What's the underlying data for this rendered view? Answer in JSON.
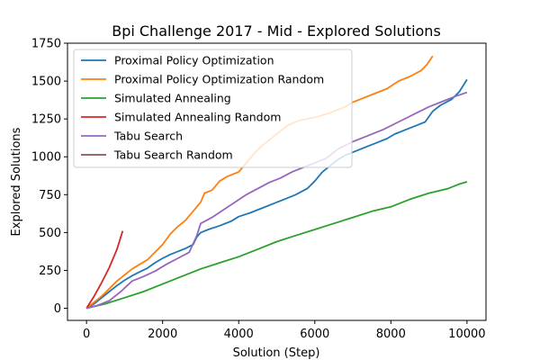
{
  "chart_data": {
    "type": "line",
    "title": "Bpi Challenge 2017 - Mid - Explored Solutions",
    "xlabel": "Solution (Step)",
    "ylabel": "Explored Solutions",
    "xlim": [
      -500,
      10500
    ],
    "ylim": [
      -80,
      1750
    ],
    "xticks": [
      0,
      2000,
      4000,
      6000,
      8000,
      10000
    ],
    "yticks": [
      0,
      250,
      500,
      750,
      1000,
      1250,
      1500,
      1750
    ],
    "grid": false,
    "legend_position": "top-left",
    "series": [
      {
        "name": "Proximal Policy Optimization",
        "color": "#1f77b4",
        "points": [
          [
            0,
            0
          ],
          [
            200,
            30
          ],
          [
            400,
            70
          ],
          [
            600,
            110
          ],
          [
            800,
            150
          ],
          [
            1000,
            185
          ],
          [
            1200,
            215
          ],
          [
            1400,
            240
          ],
          [
            1600,
            265
          ],
          [
            1800,
            300
          ],
          [
            2000,
            330
          ],
          [
            2200,
            355
          ],
          [
            2400,
            375
          ],
          [
            2600,
            395
          ],
          [
            2800,
            420
          ],
          [
            2900,
            470
          ],
          [
            3000,
            500
          ],
          [
            3200,
            520
          ],
          [
            3500,
            545
          ],
          [
            3800,
            575
          ],
          [
            4000,
            605
          ],
          [
            4300,
            630
          ],
          [
            4600,
            660
          ],
          [
            4900,
            690
          ],
          [
            5200,
            720
          ],
          [
            5500,
            750
          ],
          [
            5800,
            790
          ],
          [
            6000,
            840
          ],
          [
            6200,
            900
          ],
          [
            6400,
            940
          ],
          [
            6600,
            980
          ],
          [
            6800,
            1010
          ],
          [
            7000,
            1030
          ],
          [
            7300,
            1060
          ],
          [
            7600,
            1090
          ],
          [
            7900,
            1120
          ],
          [
            8100,
            1150
          ],
          [
            8400,
            1180
          ],
          [
            8700,
            1210
          ],
          [
            8900,
            1230
          ],
          [
            9100,
            1300
          ],
          [
            9300,
            1340
          ],
          [
            9600,
            1380
          ],
          [
            9800,
            1430
          ],
          [
            10000,
            1510
          ]
        ]
      },
      {
        "name": "Proximal Policy Optimization Random",
        "color": "#ff7f0e",
        "points": [
          [
            0,
            0
          ],
          [
            200,
            40
          ],
          [
            400,
            80
          ],
          [
            600,
            130
          ],
          [
            800,
            180
          ],
          [
            1000,
            220
          ],
          [
            1200,
            260
          ],
          [
            1400,
            290
          ],
          [
            1600,
            320
          ],
          [
            1800,
            370
          ],
          [
            2000,
            420
          ],
          [
            2200,
            490
          ],
          [
            2400,
            540
          ],
          [
            2600,
            580
          ],
          [
            2800,
            640
          ],
          [
            3000,
            700
          ],
          [
            3100,
            760
          ],
          [
            3300,
            780
          ],
          [
            3500,
            840
          ],
          [
            3700,
            870
          ],
          [
            4000,
            900
          ],
          [
            4200,
            960
          ],
          [
            4400,
            1020
          ],
          [
            4600,
            1070
          ],
          [
            4800,
            1110
          ],
          [
            5000,
            1150
          ],
          [
            5300,
            1210
          ],
          [
            5600,
            1240
          ],
          [
            6000,
            1260
          ],
          [
            6400,
            1290
          ],
          [
            6800,
            1330
          ],
          [
            7000,
            1360
          ],
          [
            7300,
            1390
          ],
          [
            7600,
            1420
          ],
          [
            7900,
            1450
          ],
          [
            8200,
            1500
          ],
          [
            8500,
            1530
          ],
          [
            8800,
            1570
          ],
          [
            8950,
            1610
          ],
          [
            9100,
            1665
          ]
        ]
      },
      {
        "name": "Simulated Annealing",
        "color": "#2ca02c",
        "points": [
          [
            0,
            0
          ],
          [
            500,
            30
          ],
          [
            1000,
            70
          ],
          [
            1500,
            110
          ],
          [
            2000,
            160
          ],
          [
            2500,
            210
          ],
          [
            3000,
            260
          ],
          [
            3500,
            300
          ],
          [
            4000,
            340
          ],
          [
            4500,
            390
          ],
          [
            5000,
            440
          ],
          [
            5500,
            480
          ],
          [
            6000,
            520
          ],
          [
            6500,
            560
          ],
          [
            7000,
            600
          ],
          [
            7500,
            640
          ],
          [
            8000,
            670
          ],
          [
            8500,
            720
          ],
          [
            9000,
            760
          ],
          [
            9500,
            790
          ],
          [
            9800,
            820
          ],
          [
            10000,
            835
          ]
        ]
      },
      {
        "name": "Simulated Annealing Random",
        "color": "#d62728",
        "points": [
          [
            0,
            0
          ],
          [
            200,
            80
          ],
          [
            400,
            170
          ],
          [
            600,
            270
          ],
          [
            800,
            390
          ],
          [
            950,
            510
          ]
        ]
      },
      {
        "name": "Tabu Search",
        "color": "#9467bd",
        "points": [
          [
            0,
            0
          ],
          [
            300,
            20
          ],
          [
            600,
            50
          ],
          [
            900,
            110
          ],
          [
            1200,
            180
          ],
          [
            1500,
            210
          ],
          [
            1800,
            245
          ],
          [
            2100,
            290
          ],
          [
            2400,
            330
          ],
          [
            2700,
            370
          ],
          [
            2900,
            480
          ],
          [
            3000,
            560
          ],
          [
            3300,
            600
          ],
          [
            3600,
            650
          ],
          [
            3900,
            700
          ],
          [
            4200,
            750
          ],
          [
            4500,
            790
          ],
          [
            4800,
            830
          ],
          [
            5100,
            860
          ],
          [
            5400,
            900
          ],
          [
            5700,
            930
          ],
          [
            6000,
            960
          ],
          [
            6300,
            990
          ],
          [
            6600,
            1050
          ],
          [
            7000,
            1100
          ],
          [
            7400,
            1140
          ],
          [
            7800,
            1180
          ],
          [
            8200,
            1230
          ],
          [
            8600,
            1280
          ],
          [
            9000,
            1330
          ],
          [
            9400,
            1370
          ],
          [
            9700,
            1400
          ],
          [
            10000,
            1425
          ]
        ]
      },
      {
        "name": "Tabu Search Random",
        "color": "#8c564b",
        "points": []
      }
    ]
  }
}
